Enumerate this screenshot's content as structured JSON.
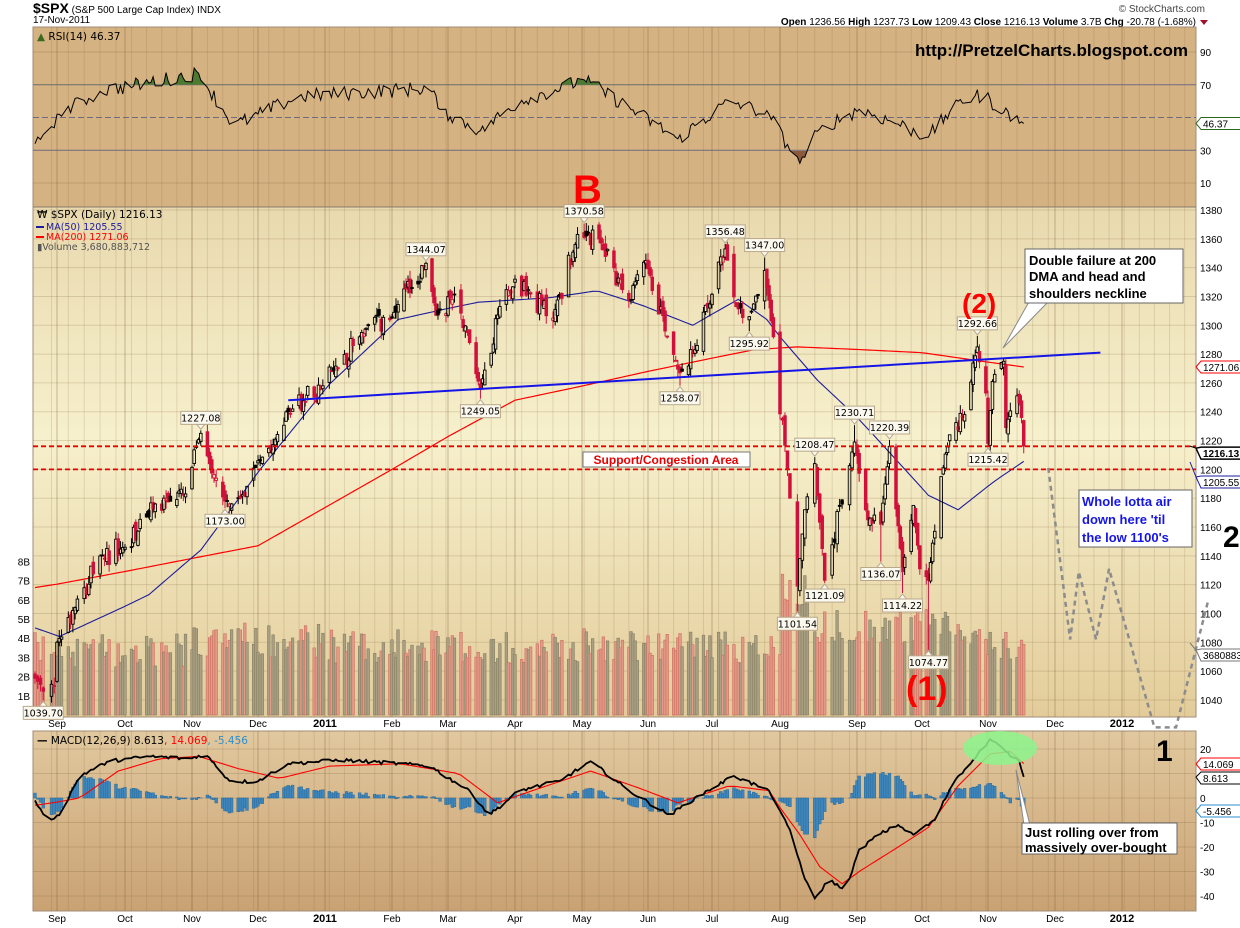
{
  "header": {
    "symbol": "$SPX",
    "name": "(S&P 500 Large Cap Index)",
    "exchange": "INDX",
    "date": "17-Nov-2011",
    "copyright": "© StockCharts.com",
    "quote": {
      "open_label": "Open",
      "open": "1236.56",
      "high_label": "High",
      "high": "1237.73",
      "low_label": "Low",
      "low": "1209.43",
      "close_label": "Close",
      "close": "1216.13",
      "volume_label": "Volume",
      "volume": "3.7B",
      "chg_label": "Chg",
      "chg": "-20.78 (-1.68%)"
    },
    "watermark": "http://PretzelCharts.blogspot.com"
  },
  "legends": {
    "rsi": "RSI(14) 46.37",
    "price": "$SPX (Daily) 1216.13",
    "ma50": "MA(50) 1205.55",
    "ma200": "MA(200) 1271.06",
    "volume": "Volume 3,680,883,712",
    "macd": "MACD(12,26,9) 8.613",
    "signal": ", 14.069",
    "hist": ", -5.456"
  },
  "axis_tags": {
    "rsi": "46.37",
    "ma200": "1271.06",
    "close": "1216.13",
    "ma50": "1205.55",
    "volume": "3680883",
    "signal": "14.069",
    "macd": "8.613",
    "hist": "-5.456"
  },
  "annotations": {
    "wave_b": "B",
    "wave_1": "(1)",
    "wave_2": "(2)",
    "big_2": "2",
    "big_1": "1",
    "support_label": "Support/Congestion Area",
    "callout_double_failure": [
      "Double failure at 200",
      "DMA and head and",
      "shoulders neckline"
    ],
    "callout_air": [
      "Whole lotta air",
      "down here 'til",
      "the low 1100's"
    ],
    "callout_rolling": [
      "Just rolling over from",
      "massively over-bought"
    ]
  },
  "colors": {
    "up_candle": "#000000",
    "down_candle": "#D0103A",
    "ma50": "#1C1C9C",
    "ma200": "#FF0000",
    "neckline": "#1515E8",
    "support": "#E80000",
    "projection": "#8C8C8C",
    "macd": "#000000",
    "signal": "#FF0000",
    "histogram": "#3E86BC",
    "rsi_overbought": "#4E7A30",
    "rsi_oversold": "#8A5A3A"
  },
  "chart_data": {
    "type": "candlestick",
    "title": "$SPX (S&P 500 Large Cap Index) INDX",
    "x_ticks": [
      {
        "label": "Sep",
        "date": "2010-09-01"
      },
      {
        "label": "Oct",
        "date": "2010-10-01"
      },
      {
        "label": "Nov",
        "date": "2010-11-01"
      },
      {
        "label": "Dec",
        "date": "2010-12-01"
      },
      {
        "label": "2011",
        "date": "2011-01-01",
        "bold": true
      },
      {
        "label": "Feb",
        "date": "2011-02-01"
      },
      {
        "label": "Mar",
        "date": "2011-03-01"
      },
      {
        "label": "Apr",
        "date": "2011-04-01"
      },
      {
        "label": "May",
        "date": "2011-05-01"
      },
      {
        "label": "Jun",
        "date": "2011-06-01"
      },
      {
        "label": "Jul",
        "date": "2011-07-01"
      },
      {
        "label": "Aug",
        "date": "2011-08-01"
      },
      {
        "label": "Sep",
        "date": "2011-09-01"
      },
      {
        "label": "Oct",
        "date": "2011-10-01"
      },
      {
        "label": "Nov",
        "date": "2011-11-01"
      },
      {
        "label": "Dec",
        "date": "2011-12-01"
      },
      {
        "label": "2012",
        "date": "2012-01-01",
        "bold": true
      }
    ],
    "price": {
      "scale": "linear",
      "ylim": [
        1028,
        1382
      ],
      "ticks": [
        1040,
        1060,
        1080,
        1100,
        1120,
        1140,
        1160,
        1180,
        1200,
        1220,
        1240,
        1260,
        1280,
        1300,
        1320,
        1340,
        1360,
        1380
      ],
      "close_approx": [
        [
          "2010-08-24",
          1055
        ],
        [
          "2010-08-27",
          1046
        ],
        [
          "2010-08-31",
          1050
        ],
        [
          "2010-09-01",
          1080
        ],
        [
          "2010-09-10",
          1110
        ],
        [
          "2010-09-21",
          1140
        ],
        [
          "2010-10-01",
          1146
        ],
        [
          "2010-10-15",
          1176
        ],
        [
          "2010-10-29",
          1183
        ],
        [
          "2010-11-05",
          1225
        ],
        [
          "2010-11-16",
          1178
        ],
        [
          "2010-11-23",
          1180
        ],
        [
          "2010-12-01",
          1206
        ],
        [
          "2010-12-15",
          1240
        ],
        [
          "2010-12-31",
          1258
        ],
        [
          "2011-01-18",
          1295
        ],
        [
          "2011-02-01",
          1305
        ],
        [
          "2011-02-18",
          1343
        ],
        [
          "2011-02-23",
          1307
        ],
        [
          "2011-03-04",
          1321
        ],
        [
          "2011-03-10",
          1295
        ],
        [
          "2011-03-16",
          1256
        ],
        [
          "2011-03-25",
          1313
        ],
        [
          "2011-04-01",
          1332
        ],
        [
          "2011-04-18",
          1305
        ],
        [
          "2011-04-29",
          1363
        ],
        [
          "2011-05-02",
          1361
        ],
        [
          "2011-05-10",
          1357
        ],
        [
          "2011-05-23",
          1317
        ],
        [
          "2011-05-31",
          1345
        ],
        [
          "2011-06-16",
          1267
        ],
        [
          "2011-06-23",
          1283
        ],
        [
          "2011-07-07",
          1353
        ],
        [
          "2011-07-12",
          1313
        ],
        [
          "2011-07-18",
          1306
        ],
        [
          "2011-07-25",
          1338
        ],
        [
          "2011-07-29",
          1292
        ],
        [
          "2011-08-04",
          1200
        ],
        [
          "2011-08-08",
          1119
        ],
        [
          "2011-08-11",
          1172
        ],
        [
          "2011-08-15",
          1204
        ],
        [
          "2011-08-19",
          1123
        ],
        [
          "2011-08-31",
          1219
        ],
        [
          "2011-09-06",
          1165
        ],
        [
          "2011-09-12",
          1162
        ],
        [
          "2011-09-16",
          1216
        ],
        [
          "2011-09-22",
          1129
        ],
        [
          "2011-09-27",
          1175
        ],
        [
          "2011-09-30",
          1131
        ],
        [
          "2011-10-04",
          1123
        ],
        [
          "2011-10-10",
          1195
        ],
        [
          "2011-10-14",
          1224
        ],
        [
          "2011-10-21",
          1238
        ],
        [
          "2011-10-27",
          1285
        ],
        [
          "2011-10-31",
          1253
        ],
        [
          "2011-11-01",
          1218
        ],
        [
          "2011-11-03",
          1261
        ],
        [
          "2011-11-08",
          1275
        ],
        [
          "2011-11-09",
          1229
        ],
        [
          "2011-11-14",
          1251
        ],
        [
          "2011-11-16",
          1236
        ],
        [
          "2011-11-17",
          1216.13
        ]
      ],
      "ma50": [
        [
          "2010-08-24",
          1090
        ],
        [
          "2010-09-02",
          1084
        ],
        [
          "2010-09-20",
          1097
        ],
        [
          "2010-10-12",
          1113
        ],
        [
          "2010-11-05",
          1144
        ],
        [
          "2010-12-02",
          1200
        ],
        [
          "2011-01-03",
          1259
        ],
        [
          "2011-02-04",
          1304
        ],
        [
          "2011-03-15",
          1316
        ],
        [
          "2011-04-16",
          1319
        ],
        [
          "2011-05-08",
          1324
        ],
        [
          "2011-05-29",
          1314
        ],
        [
          "2011-06-22",
          1300
        ],
        [
          "2011-07-13",
          1318
        ],
        [
          "2011-07-26",
          1304
        ],
        [
          "2011-08-16",
          1262
        ],
        [
          "2011-09-11",
          1220
        ],
        [
          "2011-10-04",
          1182
        ],
        [
          "2011-10-18",
          1172
        ],
        [
          "2011-11-05",
          1193
        ],
        [
          "2011-11-17",
          1205.55
        ]
      ],
      "ma200": [
        [
          "2010-08-24",
          1118
        ],
        [
          "2010-12-01",
          1147
        ],
        [
          "2011-02-01",
          1200
        ],
        [
          "2011-04-01",
          1248
        ],
        [
          "2011-06-01",
          1268
        ],
        [
          "2011-07-20",
          1283
        ],
        [
          "2011-08-08",
          1285
        ],
        [
          "2011-10-01",
          1281
        ],
        [
          "2011-11-17",
          1271.06
        ]
      ],
      "labeled_points": [
        {
          "date": "2010-08-27",
          "value": "1039.70",
          "kind": "low"
        },
        {
          "date": "2010-11-05",
          "value": "1227.08",
          "kind": "high"
        },
        {
          "date": "2010-11-16",
          "value": "1173.00",
          "kind": "low"
        },
        {
          "date": "2011-02-18",
          "value": "1344.07",
          "kind": "high"
        },
        {
          "date": "2011-03-16",
          "value": "1249.05",
          "kind": "low"
        },
        {
          "date": "2011-05-02",
          "value": "1370.58",
          "kind": "high"
        },
        {
          "date": "2011-06-16",
          "value": "1258.07",
          "kind": "low"
        },
        {
          "date": "2011-07-07",
          "value": "1356.48",
          "kind": "high"
        },
        {
          "date": "2011-07-18",
          "value": "1295.92",
          "kind": "low"
        },
        {
          "date": "2011-07-25",
          "value": "1347.00",
          "kind": "high"
        },
        {
          "date": "2011-08-08",
          "value": "1101.54",
          "kind": "low"
        },
        {
          "date": "2011-08-15",
          "value": "1208.47",
          "kind": "high"
        },
        {
          "date": "2011-08-19",
          "value": "1121.09",
          "kind": "low"
        },
        {
          "date": "2011-08-31",
          "value": "1230.71",
          "kind": "high"
        },
        {
          "date": "2011-09-12",
          "value": "1136.07",
          "kind": "low"
        },
        {
          "date": "2011-09-16",
          "value": "1220.39",
          "kind": "high"
        },
        {
          "date": "2011-09-22",
          "value": "1114.22",
          "kind": "low"
        },
        {
          "date": "2011-10-04",
          "value": "1074.77",
          "kind": "low"
        },
        {
          "date": "2011-10-27",
          "value": "1292.66",
          "kind": "high"
        },
        {
          "date": "2011-11-01",
          "value": "1215.42",
          "kind": "low"
        }
      ],
      "neckline": [
        [
          "2010-12-15",
          1248
        ],
        [
          "2011-12-22",
          1281
        ]
      ],
      "support_levels": [
        1216,
        1200
      ],
      "projection": [
        [
          "2011-11-28",
          1201
        ],
        [
          "2011-12-08",
          1082
        ],
        [
          "2011-12-12",
          1129
        ],
        [
          "2011-12-20",
          1082
        ],
        [
          "2011-12-26",
          1131
        ],
        [
          "2012-01-16",
          1021
        ],
        [
          "2012-01-26",
          1021
        ],
        [
          "2012-02-10",
          1110
        ]
      ]
    },
    "volume": {
      "ticks": [
        "1B",
        "2B",
        "3B",
        "4B",
        "5B",
        "6B",
        "7B",
        "8B"
      ],
      "last": 3680883712
    },
    "rsi": {
      "period": 14,
      "last": 46.37,
      "ticks": [
        90,
        70,
        30,
        10
      ],
      "levels": [
        70,
        30
      ],
      "approx": [
        [
          "2010-08-24",
          34
        ],
        [
          "2010-09-02",
          52
        ],
        [
          "2010-09-20",
          66
        ],
        [
          "2010-11-04",
          77
        ],
        [
          "2010-11-20",
          45
        ],
        [
          "2010-12-20",
          63
        ],
        [
          "2011-02-20",
          68
        ],
        [
          "2011-02-25",
          55
        ],
        [
          "2011-03-16",
          42
        ],
        [
          "2011-04-03",
          60
        ],
        [
          "2011-05-02",
          73
        ],
        [
          "2011-05-28",
          52
        ],
        [
          "2011-06-15",
          37
        ],
        [
          "2011-07-09",
          60
        ],
        [
          "2011-07-27",
          52
        ],
        [
          "2011-08-09",
          22
        ],
        [
          "2011-08-17",
          43
        ],
        [
          "2011-09-02",
          55
        ],
        [
          "2011-09-20",
          46
        ],
        [
          "2011-10-04",
          38
        ],
        [
          "2011-10-18",
          60
        ],
        [
          "2011-10-30",
          64
        ],
        [
          "2011-11-06",
          55
        ],
        [
          "2011-11-17",
          46.37
        ]
      ]
    },
    "macd": {
      "params": "12,26,9",
      "ticks": [
        20,
        0,
        -10,
        -20,
        -30,
        -40
      ],
      "macd_approx": [
        [
          "2010-08-24",
          -1
        ],
        [
          "2010-08-28",
          -9
        ],
        [
          "2010-09-02",
          -7
        ],
        [
          "2010-09-11",
          9
        ],
        [
          "2010-09-24",
          15
        ],
        [
          "2010-10-12",
          17
        ],
        [
          "2010-10-31",
          16
        ],
        [
          "2010-11-07",
          18
        ],
        [
          "2010-11-18",
          7
        ],
        [
          "2010-11-30",
          6.5
        ],
        [
          "2010-12-15",
          14
        ],
        [
          "2011-01-08",
          15.5
        ],
        [
          "2011-02-05",
          14
        ],
        [
          "2011-02-20",
          13
        ],
        [
          "2011-03-11",
          3
        ],
        [
          "2011-03-20",
          -7
        ],
        [
          "2011-04-03",
          3
        ],
        [
          "2011-04-21",
          7
        ],
        [
          "2011-05-05",
          15
        ],
        [
          "2011-05-23",
          3
        ],
        [
          "2011-06-11",
          -7
        ],
        [
          "2011-06-25",
          1
        ],
        [
          "2011-07-11",
          9
        ],
        [
          "2011-07-27",
          3
        ],
        [
          "2011-08-05",
          -13
        ],
        [
          "2011-08-11",
          -33
        ],
        [
          "2011-08-15",
          -41
        ],
        [
          "2011-08-21",
          -33
        ],
        [
          "2011-08-27",
          -38
        ],
        [
          "2011-09-02",
          -21
        ],
        [
          "2011-09-11",
          -15
        ],
        [
          "2011-09-20",
          -11
        ],
        [
          "2011-09-27",
          -15
        ],
        [
          "2011-10-07",
          -9
        ],
        [
          "2011-10-16",
          7
        ],
        [
          "2011-10-25",
          15.5
        ],
        [
          "2011-11-02",
          24
        ],
        [
          "2011-11-09",
          19
        ],
        [
          "2011-11-15",
          15
        ],
        [
          "2011-11-17",
          8.613
        ]
      ],
      "signal_approx": [
        [
          "2010-08-24",
          -3
        ],
        [
          "2010-09-11",
          0
        ],
        [
          "2010-09-28",
          11
        ],
        [
          "2010-10-17",
          16
        ],
        [
          "2010-11-04",
          17
        ],
        [
          "2010-11-22",
          12
        ],
        [
          "2010-12-11",
          8
        ],
        [
          "2011-01-03",
          13
        ],
        [
          "2011-02-05",
          14
        ],
        [
          "2011-03-06",
          10
        ],
        [
          "2011-03-24",
          -2
        ],
        [
          "2011-04-12",
          4
        ],
        [
          "2011-05-05",
          11
        ],
        [
          "2011-05-28",
          4
        ],
        [
          "2011-06-15",
          -2
        ],
        [
          "2011-07-09",
          5
        ],
        [
          "2011-07-27",
          3
        ],
        [
          "2011-08-09",
          -15
        ],
        [
          "2011-08-17",
          -28
        ],
        [
          "2011-08-26",
          -35
        ],
        [
          "2011-09-02",
          -30
        ],
        [
          "2011-09-20",
          -20
        ],
        [
          "2011-10-04",
          -12
        ],
        [
          "2011-10-18",
          5
        ],
        [
          "2011-11-02",
          18
        ],
        [
          "2011-11-11",
          19
        ],
        [
          "2011-11-17",
          14.069
        ]
      ],
      "hist_last": -5.456
    }
  }
}
